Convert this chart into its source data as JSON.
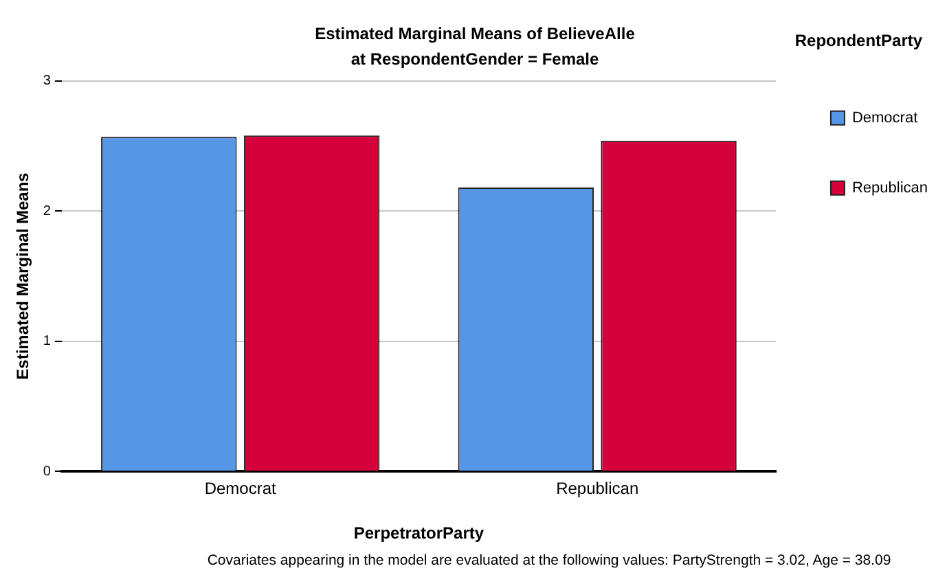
{
  "chart_data": {
    "type": "bar",
    "title": "Estimated Marginal Means of BelieveAlle",
    "subtitle": "at RespondentGender = Female",
    "xlabel": "PerpetratorParty",
    "ylabel": "Estimated Marginal Means",
    "legend_title": "RepondentParty",
    "categories": [
      "Democrat",
      "Republican"
    ],
    "series": [
      {
        "name": "Democrat",
        "color": "#5596e6",
        "values": [
          2.57,
          2.18
        ]
      },
      {
        "name": "Republican",
        "color": "#d5013a",
        "values": [
          2.58,
          2.54
        ]
      }
    ],
    "ylim": [
      0,
      3
    ],
    "yticks": [
      0,
      1,
      2,
      3
    ],
    "grid": "y",
    "legend": "top right",
    "annotations": [
      "Covariates appearing in the model are evaluated at the following values: PartyStrength = 3.02, Age = 38.09"
    ]
  }
}
